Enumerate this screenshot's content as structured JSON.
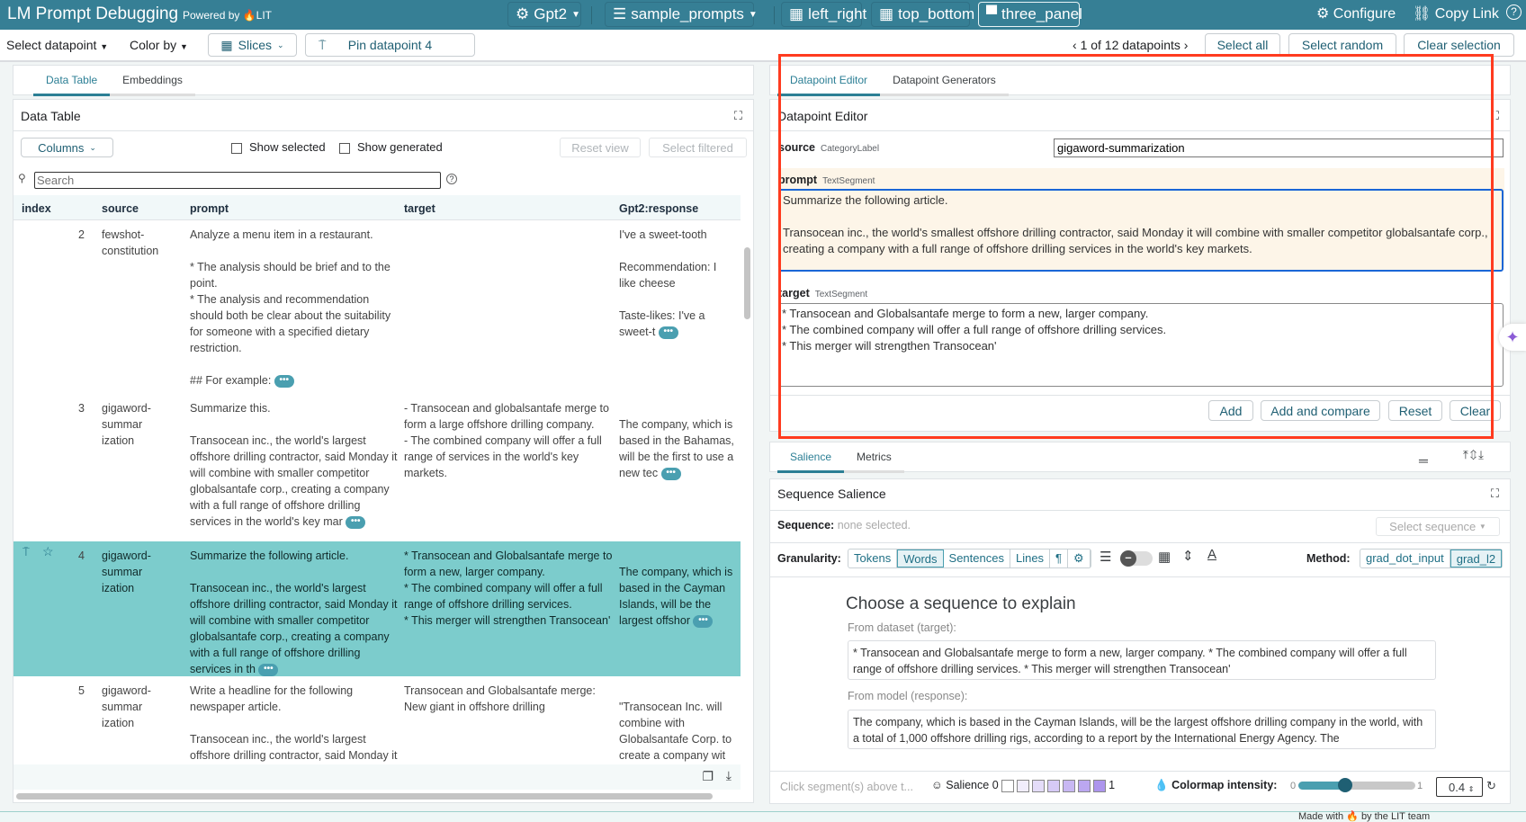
{
  "header": {
    "title": "LM Prompt Debugging",
    "powered_by": "Powered by",
    "lit": "LIT",
    "model": "Gpt2",
    "dataset": "sample_prompts",
    "layouts": [
      "left_right",
      "top_bottom",
      "three_panel"
    ],
    "active_layout": "three_panel",
    "configure": "Configure",
    "copy_link": "Copy Link"
  },
  "toolbar": {
    "select_datapoint": "Select datapoint",
    "color_by": "Color by",
    "slices": "Slices",
    "pin": "Pin datapoint 4",
    "count": "1 of 12 datapoints",
    "select_all": "Select all",
    "select_random": "Select random",
    "clear_selection": "Clear selection"
  },
  "left": {
    "tabs": [
      "Data Table",
      "Embeddings"
    ],
    "title": "Data Table",
    "columns": "Columns",
    "show_selected": "Show selected",
    "show_generated": "Show generated",
    "reset_view": "Reset view",
    "select_filtered": "Select filtered",
    "search_placeholder": "Search",
    "headers": [
      "index",
      "source",
      "prompt",
      "target",
      "Gpt2:response"
    ],
    "rows": [
      {
        "index": "2",
        "source": "fewshot-\nconstitution",
        "prompt": "Analyze a menu item in a restaurant.\n\n* The analysis should be brief and to the point.\n* The analysis and recommendation should both be clear about the suitability for someone with a specified dietary restriction.\n\n## For example:",
        "target": "",
        "response": "I've a sweet-tooth\n\nRecommendation: I like cheese\n\nTaste-likes: I've a sweet-t",
        "selected": false
      },
      {
        "index": "3",
        "source": "gigaword-\nsummar\nization",
        "prompt": "Summarize this.\n\nTransocean inc., the world's largest offshore drilling contractor, said Monday it will combine with smaller competitor globalsantafe corp., creating a company with a full range of offshore drilling services in the world's key mar",
        "target": "- Transocean and globalsantafe merge to form a large offshore drilling company.\n- The combined company will offer a full range of services in the world's key markets.",
        "response": "\nThe company, which is based in the Bahamas, will be the first to use a new tec",
        "selected": false
      },
      {
        "index": "4",
        "source": "gigaword-\nsummar\nization",
        "prompt": "Summarize the following article.\n\nTransocean inc., the world's largest offshore drilling contractor, said Monday it will combine with smaller competitor globalsantafe corp., creating a company with a full range of offshore drilling services in th",
        "target": "* Transocean and Globalsantafe merge to form a new, larger company.\n* The combined company will offer a full range of offshore drilling services.\n* This merger will strengthen Transocean'",
        "response": "\nThe company, which is based in the Cayman Islands, will be the largest offshor",
        "selected": true
      },
      {
        "index": "5",
        "source": "gigaword-\nsummar\nization",
        "prompt": "Write a headline for the following newspaper article.\n\nTransocean inc., the world's largest offshore drilling contractor, said Monday it will combine with smaller",
        "target": "Transocean and Globalsantafe merge: New giant in offshore drilling",
        "response": "\n\"Transocean Inc. will combine with Globalsantafe Corp. to create a company wit",
        "selected": false
      }
    ]
  },
  "editor": {
    "tabs": [
      "Datapoint Editor",
      "Datapoint Generators"
    ],
    "title": "Datapoint Editor",
    "source_label": "source",
    "source_type": "CategoryLabel",
    "source_value": "gigaword-summarization",
    "prompt_label": "prompt",
    "prompt_type": "TextSegment",
    "prompt_value": "Summarize the following article.\n\nTransocean inc., the world's smallest offshore drilling contractor, said Monday it will combine with smaller competitor globalsantafe corp., creating a company with a full range of offshore drilling services in the world's key markets.",
    "target_label": "target",
    "target_type": "TextSegment",
    "target_value": "* Transocean and Globalsantafe merge to form a new, larger company.\n* The combined company will offer a full range of offshore drilling services.\n* This merger will strengthen Transocean'",
    "add": "Add",
    "add_compare": "Add and compare",
    "reset": "Reset",
    "clear": "Clear"
  },
  "salience": {
    "tabs": [
      "Salience",
      "Metrics"
    ],
    "title": "Sequence Salience",
    "sequence_label": "Sequence:",
    "sequence_value": "none selected.",
    "select_sequence": "Select sequence",
    "granularity_label": "Granularity:",
    "granularity": [
      "Tokens",
      "Words",
      "Sentences",
      "Lines",
      "¶",
      "⚙"
    ],
    "granularity_selected": "Words",
    "method_label": "Method:",
    "methods": [
      "grad_dot_input",
      "grad_l2"
    ],
    "method_selected": "grad_l2",
    "choose": "Choose a sequence to explain",
    "from_dataset": "From dataset (target):",
    "dataset_text": "* Transocean and Globalsantafe merge to form a new, larger company. * The combined company will offer a full range of offshore drilling services. * This merger will strengthen Transocean'",
    "from_model": "From model (response):",
    "model_text": "The company, which is based in the Cayman Islands, will be the largest offshore drilling company in the world, with a total of 1,000 offshore drilling rigs, according to a report by the International Energy Agency. The",
    "hint": "Click segment(s) above t...",
    "salience_label": "Salience",
    "scale_min": "0",
    "scale_max": "1",
    "colormap_label": "Colormap intensity:",
    "cm_min": "0",
    "cm_max": "1",
    "intensity": "0.4",
    "intensity_fraction": 0.4,
    "swatches": [
      "#ffffff",
      "#f1edfc",
      "#e4dcf9",
      "#d6caf6",
      "#c8b8f3",
      "#bba7f0",
      "#ad95ed"
    ]
  },
  "footer": {
    "text": "Made with 🔥 by the LIT team"
  },
  "colors": {
    "brand": "#367f95",
    "selected_row": "#7ccccc",
    "highlight_box": "#ff3b1f",
    "focus": "#1a66d6"
  }
}
